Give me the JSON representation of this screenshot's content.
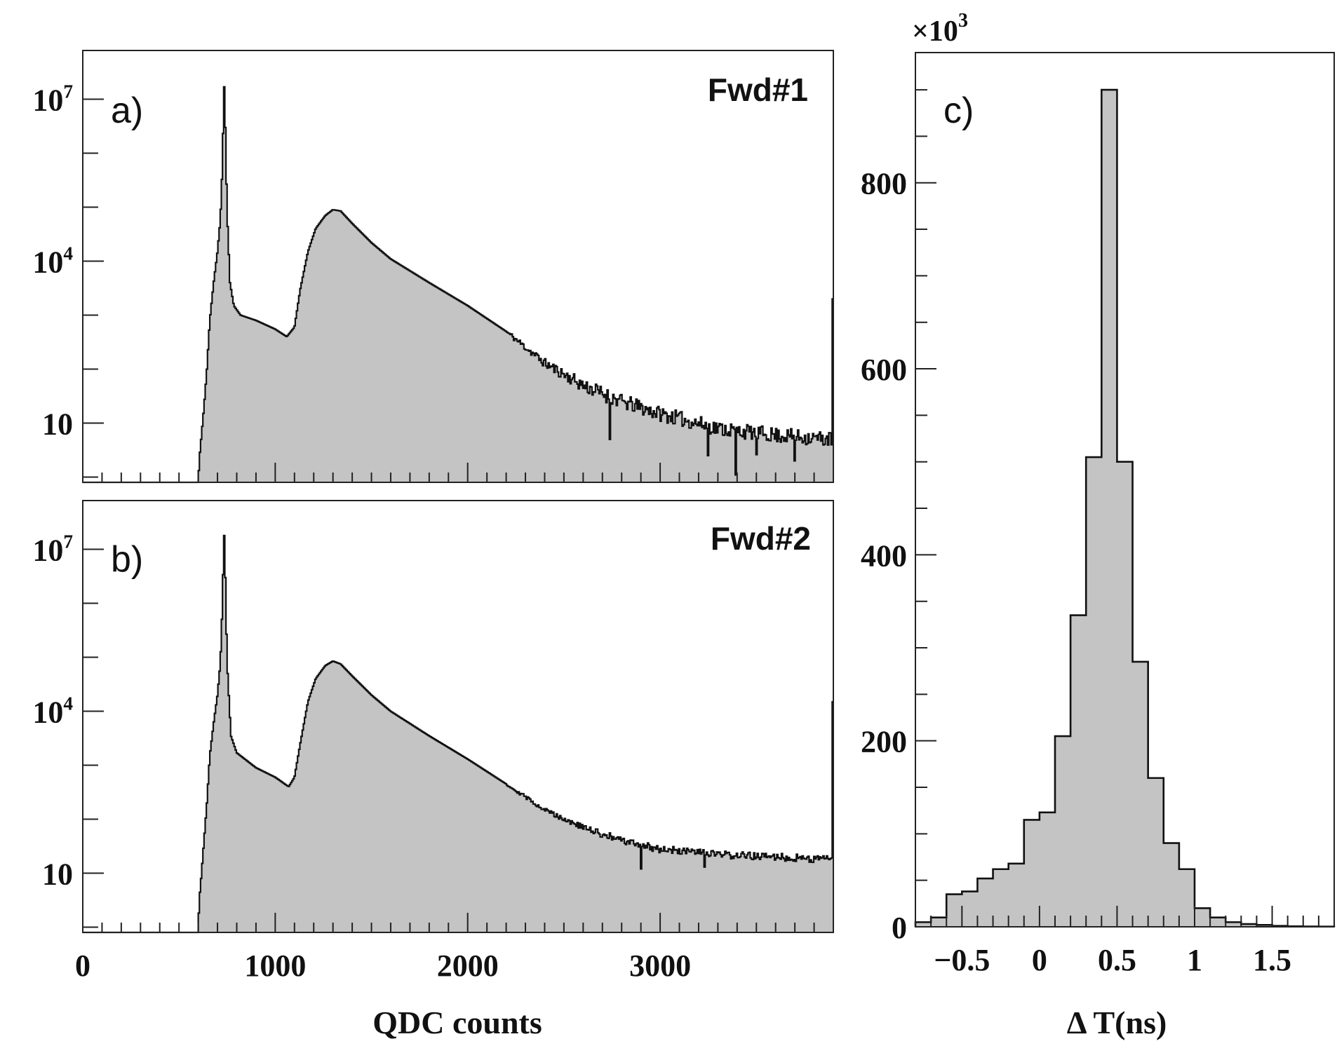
{
  "colors": {
    "fill": "#c4c4c4",
    "line": "#111111",
    "frame": "#222222",
    "background": "#ffffff"
  },
  "chart_data": [
    {
      "id": "a",
      "type": "histogram",
      "panel_label": "a)",
      "tag": "Fwd#1",
      "xlabel": "",
      "ylabel": "",
      "yscale": "log",
      "xlim": [
        0,
        3900
      ],
      "ylim": [
        0.8,
        80000000
      ],
      "ytick_labels": [
        {
          "value": 10,
          "text": "10"
        },
        {
          "value": 10000,
          "text": "10^4"
        },
        {
          "value": 10000000,
          "text": "10^7"
        }
      ],
      "grid": false,
      "legend": "none",
      "shape": [
        [
          0,
          0
        ],
        [
          595,
          0
        ],
        [
          605,
          2
        ],
        [
          615,
          5
        ],
        [
          630,
          20
        ],
        [
          645,
          100
        ],
        [
          660,
          800
        ],
        [
          680,
          4000
        ],
        [
          700,
          15000
        ],
        [
          715,
          60000
        ],
        [
          725,
          500000
        ],
        [
          731,
          5000000
        ],
        [
          735,
          17000000
        ],
        [
          741,
          3000000
        ],
        [
          750,
          80000
        ],
        [
          765,
          4000
        ],
        [
          785,
          1500
        ],
        [
          820,
          1000
        ],
        [
          900,
          800
        ],
        [
          1000,
          550
        ],
        [
          1060,
          400
        ],
        [
          1100,
          600
        ],
        [
          1130,
          3000
        ],
        [
          1170,
          15000
        ],
        [
          1210,
          40000
        ],
        [
          1260,
          70000
        ],
        [
          1300,
          90000
        ],
        [
          1340,
          85000
        ],
        [
          1400,
          50000
        ],
        [
          1500,
          22000
        ],
        [
          1600,
          11000
        ],
        [
          1800,
          4000
        ],
        [
          2000,
          1500
        ],
        [
          2200,
          500
        ],
        [
          2400,
          130
        ],
        [
          2600,
          50
        ],
        [
          2800,
          25
        ],
        [
          3000,
          15
        ],
        [
          3300,
          8
        ],
        [
          3600,
          6
        ],
        [
          3900,
          5
        ]
      ],
      "outliers": [
        {
          "x": 3390,
          "y": 1.1
        },
        {
          "x": 3250,
          "y": 2.5
        },
        {
          "x": 3700,
          "y": 2.0
        },
        {
          "x": 2740,
          "y": 5.0
        },
        {
          "x": 3500,
          "y": 2.6
        }
      ],
      "edge_spike": {
        "x": 3895,
        "y": 2000
      }
    },
    {
      "id": "b",
      "type": "histogram",
      "panel_label": "b)",
      "tag": "Fwd#2",
      "xlabel": "QDC counts",
      "ylabel": "",
      "yscale": "log",
      "xlim": [
        0,
        3900
      ],
      "ylim": [
        0.8,
        80000000
      ],
      "xtick_labels": [
        {
          "value": 0,
          "text": "0"
        },
        {
          "value": 1000,
          "text": "1000"
        },
        {
          "value": 2000,
          "text": "2000"
        },
        {
          "value": 3000,
          "text": "3000"
        }
      ],
      "ytick_labels": [
        {
          "value": 10,
          "text": "10"
        },
        {
          "value": 10000,
          "text": "10^4"
        },
        {
          "value": 10000000,
          "text": "10^7"
        }
      ],
      "grid": false,
      "legend": "none",
      "shape": [
        [
          0,
          0
        ],
        [
          595,
          0
        ],
        [
          605,
          3
        ],
        [
          615,
          8
        ],
        [
          630,
          40
        ],
        [
          645,
          200
        ],
        [
          660,
          1500
        ],
        [
          680,
          6000
        ],
        [
          700,
          20000
        ],
        [
          715,
          80000
        ],
        [
          725,
          800000
        ],
        [
          731,
          7000000
        ],
        [
          735,
          18000000
        ],
        [
          741,
          3000000
        ],
        [
          750,
          80000
        ],
        [
          770,
          3500
        ],
        [
          800,
          1700
        ],
        [
          900,
          900
        ],
        [
          1000,
          600
        ],
        [
          1070,
          400
        ],
        [
          1100,
          600
        ],
        [
          1130,
          2500
        ],
        [
          1170,
          15000
        ],
        [
          1210,
          40000
        ],
        [
          1260,
          70000
        ],
        [
          1300,
          85000
        ],
        [
          1340,
          75000
        ],
        [
          1400,
          45000
        ],
        [
          1500,
          20000
        ],
        [
          1600,
          10000
        ],
        [
          1800,
          3500
        ],
        [
          2000,
          1300
        ],
        [
          2200,
          450
        ],
        [
          2400,
          150
        ],
        [
          2600,
          70
        ],
        [
          2800,
          40
        ],
        [
          3000,
          28
        ],
        [
          3300,
          22
        ],
        [
          3600,
          20
        ],
        [
          3900,
          18
        ]
      ],
      "outliers": [
        {
          "x": 2900,
          "y": 12
        },
        {
          "x": 3230,
          "y": 13
        }
      ],
      "edge_spike": {
        "x": 3895,
        "y": 15000
      }
    },
    {
      "id": "c",
      "type": "histogram",
      "panel_label": "c)",
      "xlabel": "Δ T(ns)",
      "ylabel": "",
      "yscale": "linear",
      "multiplier_label": "×10^3",
      "xlim": [
        -0.8,
        1.9
      ],
      "ylim": [
        0,
        940
      ],
      "bin_edges": [
        -0.8,
        -0.7,
        -0.6,
        -0.5,
        -0.4,
        -0.3,
        -0.2,
        -0.1,
        0.0,
        0.1,
        0.2,
        0.3,
        0.4,
        0.5,
        0.6,
        0.7,
        0.8,
        0.9,
        1.0,
        1.1,
        1.2,
        1.3,
        1.4,
        1.5,
        1.6,
        1.7,
        1.8,
        1.9
      ],
      "values": [
        5,
        10,
        35,
        38,
        52,
        62,
        68,
        115,
        123,
        205,
        335,
        505,
        900,
        500,
        285,
        160,
        90,
        62,
        20,
        10,
        5,
        3,
        2,
        1,
        0.5,
        0.3,
        0.2
      ],
      "xtick_labels": [
        {
          "value": -0.5,
          "text": "−0.5"
        },
        {
          "value": 0,
          "text": "0"
        },
        {
          "value": 0.5,
          "text": "0.5"
        },
        {
          "value": 1,
          "text": "1"
        },
        {
          "value": 1.5,
          "text": "1.5"
        }
      ],
      "ytick_labels": [
        {
          "value": 0,
          "text": "0"
        },
        {
          "value": 200,
          "text": "200"
        },
        {
          "value": 400,
          "text": "400"
        },
        {
          "value": 600,
          "text": "600"
        },
        {
          "value": 800,
          "text": "800"
        }
      ],
      "grid": false,
      "legend": "none"
    }
  ]
}
